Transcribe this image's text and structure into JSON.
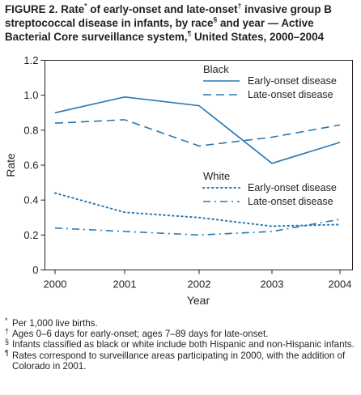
{
  "chart_data": {
    "type": "line",
    "title_parts": [
      "FIGURE 2. Rate",
      "*",
      " of early-onset and late-onset",
      "†",
      " invasive group B streptococcal disease in infants, by race",
      "§",
      " and year — Active Bacterial Core surveillance system,",
      "¶",
      " United States, 2000–2004"
    ],
    "xlabel": "Year",
    "ylabel": "Rate",
    "x": [
      "2000",
      "2001",
      "2002",
      "2003",
      "2004"
    ],
    "ylim": [
      0,
      1.2
    ],
    "yticks": [
      "0",
      "0.2",
      "0.4",
      "0.6",
      "0.8",
      "1.0",
      "1.2"
    ],
    "grid": false,
    "legend_position": "right",
    "legend_groups": [
      {
        "title": "Black",
        "entries": [
          "Early-onset disease",
          "Late-onset disease"
        ]
      },
      {
        "title": "White",
        "entries": [
          "Early-onset disease",
          "Late-onset disease"
        ]
      }
    ],
    "color": "#2878b4",
    "series": [
      {
        "name": "Early-onset disease",
        "group": "Black",
        "style": "solid",
        "values": [
          0.9,
          0.99,
          0.94,
          0.61,
          0.73
        ]
      },
      {
        "name": "Late-onset disease",
        "group": "Black",
        "style": "dashed",
        "values": [
          0.84,
          0.86,
          0.71,
          0.76,
          0.83
        ]
      },
      {
        "name": "Early-onset disease",
        "group": "White",
        "style": "dotted",
        "values": [
          0.44,
          0.33,
          0.3,
          0.25,
          0.26
        ]
      },
      {
        "name": "Late-onset disease",
        "group": "White",
        "style": "dashdot",
        "values": [
          0.24,
          0.22,
          0.2,
          0.22,
          0.29
        ]
      }
    ]
  },
  "footnotes": [
    {
      "mark": "*",
      "text": "Per 1,000 live births."
    },
    {
      "mark": "†",
      "text": "Ages 0–6 days for early-onset; ages 7–89 days for late-onset."
    },
    {
      "mark": "§",
      "text": "Infants classified as black or white include both Hispanic and non-Hispanic infants."
    },
    {
      "mark": "¶",
      "text": "Rates correspond to surveillance areas participating in 2000, with the addition of Colorado in 2001."
    }
  ]
}
